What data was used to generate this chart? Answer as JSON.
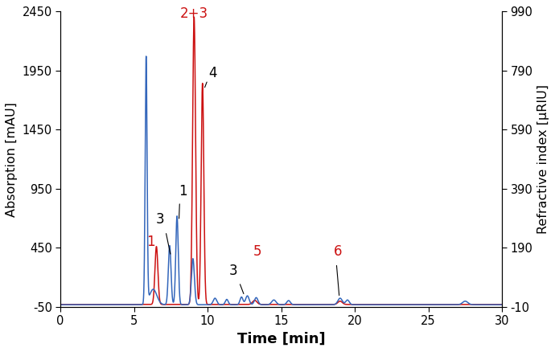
{
  "xlim": [
    0,
    30
  ],
  "ylim_left": [
    -50,
    2450
  ],
  "ylim_right": [
    -10,
    990
  ],
  "yticks_left": [
    -50,
    450,
    950,
    1450,
    1950,
    2450
  ],
  "yticks_left_labels": [
    "-50",
    "450",
    "950",
    "1450",
    "1950",
    "2450"
  ],
  "yticks_right": [
    -10,
    190,
    390,
    590,
    790,
    990
  ],
  "yticks_right_labels": [
    "-10",
    "190",
    "390",
    "590",
    "790",
    "990"
  ],
  "xticks": [
    0,
    5,
    10,
    15,
    20,
    25,
    30
  ],
  "xlabel": "Time [min]",
  "ylabel_left": "Absorption [mAU]",
  "ylabel_right": "Refractive index [μRIU]",
  "blue_color": "#3366bb",
  "red_color": "#cc1111",
  "bg_color": "#ffffff"
}
